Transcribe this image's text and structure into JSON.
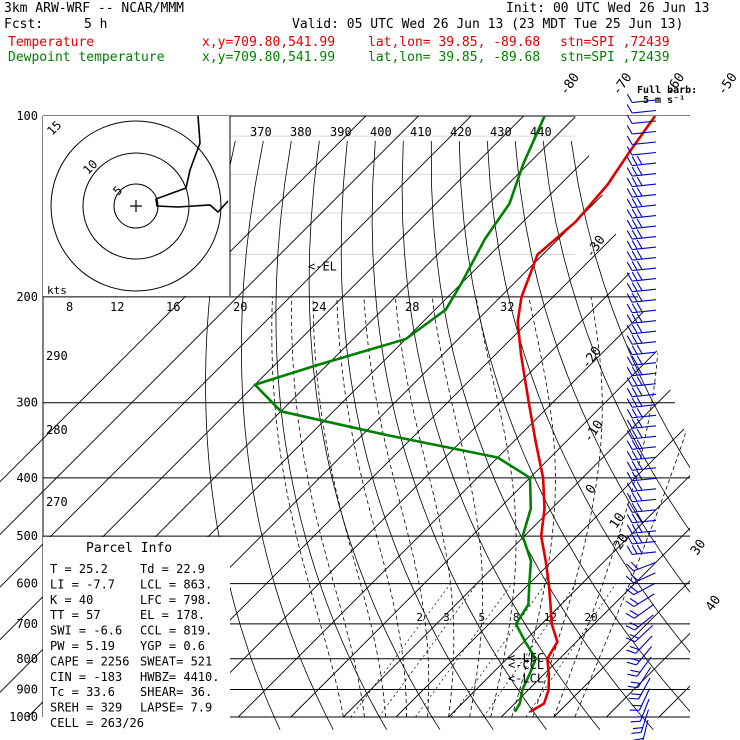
{
  "header": {
    "model": "3km ARW-WRF -- NCAR/MMM",
    "init": "Init: 00 UTC Wed 26 Jun 13",
    "fcst_label": "Fcst:",
    "fcst_value": "5 h",
    "valid": "Valid: 05 UTC Wed 26 Jun 13 (23 MDT Tue 25 Jun 13)",
    "temp_label": "Temperature",
    "dew_label": "Dewpoint temperature",
    "xy": "x,y=709.80,541.99",
    "latlon": "lat,lon= 39.85, -89.68",
    "stn": "stn=SPI ,72439",
    "full_barb": "Full barb:",
    "full_barb_units": "5 m s⁻¹",
    "colors": {
      "temperature": "#e00000",
      "dewpoint": "#008000",
      "barbs": "#0000c0"
    }
  },
  "chart_data": {
    "type": "line",
    "subtype": "skew-T log-p sounding",
    "y_axis": "pressure (hPa), log scale",
    "ylim": [
      1000,
      100
    ],
    "pressure_ticks": [
      100,
      200,
      300,
      400,
      500,
      600,
      700,
      800,
      900,
      1000
    ],
    "isotherm_labels": [
      -80,
      -70,
      -60,
      -50,
      -40,
      -30,
      -20,
      -10,
      0,
      10,
      20,
      30,
      40
    ],
    "theta_labels_top": [
      370,
      380,
      390,
      400,
      410,
      420,
      430,
      440
    ],
    "theta_labels_left": [
      290,
      280,
      270
    ],
    "mixing_ratio_labels": [
      2,
      3,
      5,
      8,
      12,
      20
    ],
    "series": [
      {
        "name": "Temperature",
        "color": "#e00000",
        "points": [
          {
            "p": 980,
            "t": 24.5
          },
          {
            "p": 950,
            "t": 25.6
          },
          {
            "p": 900,
            "t": 23.8
          },
          {
            "p": 850,
            "t": 21.0
          },
          {
            "p": 800,
            "t": 17.7
          },
          {
            "p": 750,
            "t": 16.4
          },
          {
            "p": 700,
            "t": 11.9
          },
          {
            "p": 650,
            "t": 8.0
          },
          {
            "p": 600,
            "t": 3.7
          },
          {
            "p": 550,
            "t": -1.2
          },
          {
            "p": 500,
            "t": -6.8
          },
          {
            "p": 450,
            "t": -11.4
          },
          {
            "p": 400,
            "t": -17.5
          },
          {
            "p": 350,
            "t": -25.5
          },
          {
            "p": 300,
            "t": -34.5
          },
          {
            "p": 250,
            "t": -45.0
          },
          {
            "p": 220,
            "t": -52.0
          },
          {
            "p": 200,
            "t": -56.0
          },
          {
            "p": 170,
            "t": -61.0
          },
          {
            "p": 150,
            "t": -60.0
          },
          {
            "p": 130,
            "t": -61.0
          },
          {
            "p": 115,
            "t": -63.0
          },
          {
            "p": 100,
            "t": -65.0
          }
        ]
      },
      {
        "name": "Dewpoint temperature",
        "color": "#008000",
        "points": [
          {
            "p": 980,
            "t": 21.6
          },
          {
            "p": 950,
            "t": 21.0
          },
          {
            "p": 900,
            "t": 18.8
          },
          {
            "p": 850,
            "t": 17.3
          },
          {
            "p": 800,
            "t": 15.5
          },
          {
            "p": 750,
            "t": 10.3
          },
          {
            "p": 700,
            "t": 5.1
          },
          {
            "p": 650,
            "t": 3.8
          },
          {
            "p": 600,
            "t": 0.0
          },
          {
            "p": 550,
            "t": -4.0
          },
          {
            "p": 500,
            "t": -10.3
          },
          {
            "p": 450,
            "t": -14.0
          },
          {
            "p": 400,
            "t": -20.0
          },
          {
            "p": 370,
            "t": -30.0
          },
          {
            "p": 340,
            "t": -55.0
          },
          {
            "p": 310,
            "t": -80.0
          },
          {
            "p": 280,
            "t": -90.0
          },
          {
            "p": 260,
            "t": -82.0
          },
          {
            "p": 235,
            "t": -70.0
          },
          {
            "p": 210,
            "t": -68.0
          },
          {
            "p": 190,
            "t": -70.0
          },
          {
            "p": 160,
            "t": -74.0
          },
          {
            "p": 140,
            "t": -76.0
          },
          {
            "p": 120,
            "t": -81.0
          },
          {
            "p": 100,
            "t": -86.0
          }
        ]
      }
    ],
    "level_markers": [
      {
        "label": "<-EL",
        "p": 178
      },
      {
        "label": "<-LFC",
        "p": 798
      },
      {
        "label": "<-CCL",
        "p": 819
      },
      {
        "label": "<-LCL",
        "p": 863
      }
    ],
    "hodograph": {
      "ring_labels": [
        "5",
        "10",
        "15"
      ],
      "speed_labels": [
        "8",
        "12",
        "16",
        "20",
        "24",
        "28",
        "32"
      ],
      "kts_label": "kts"
    },
    "wind_barbs_count": 60
  },
  "parcel_info": {
    "title": "Parcel Info",
    "rows": [
      [
        "T   =    25.2",
        "Td  =   22.9"
      ],
      [
        "LI  =    -7.7",
        "LCL =   863."
      ],
      [
        "K   =      40",
        "LFC =   798."
      ],
      [
        "TT  =      57",
        "EL  =   178."
      ],
      [
        "SWI =    -6.6",
        "CCL =   819."
      ],
      [
        "PW  =    5.19",
        "YGP =    0.6"
      ],
      [
        "CAPE =   2256",
        "SWEAT=   521"
      ],
      [
        "CIN  =   -183",
        "HWBZ= 4410."
      ],
      [
        "Tc   =   33.6",
        "SHEAR=   36."
      ],
      [
        "SREH =    329",
        "LAPSE=   7.9"
      ],
      [
        "CELL = 263/26",
        ""
      ]
    ]
  }
}
